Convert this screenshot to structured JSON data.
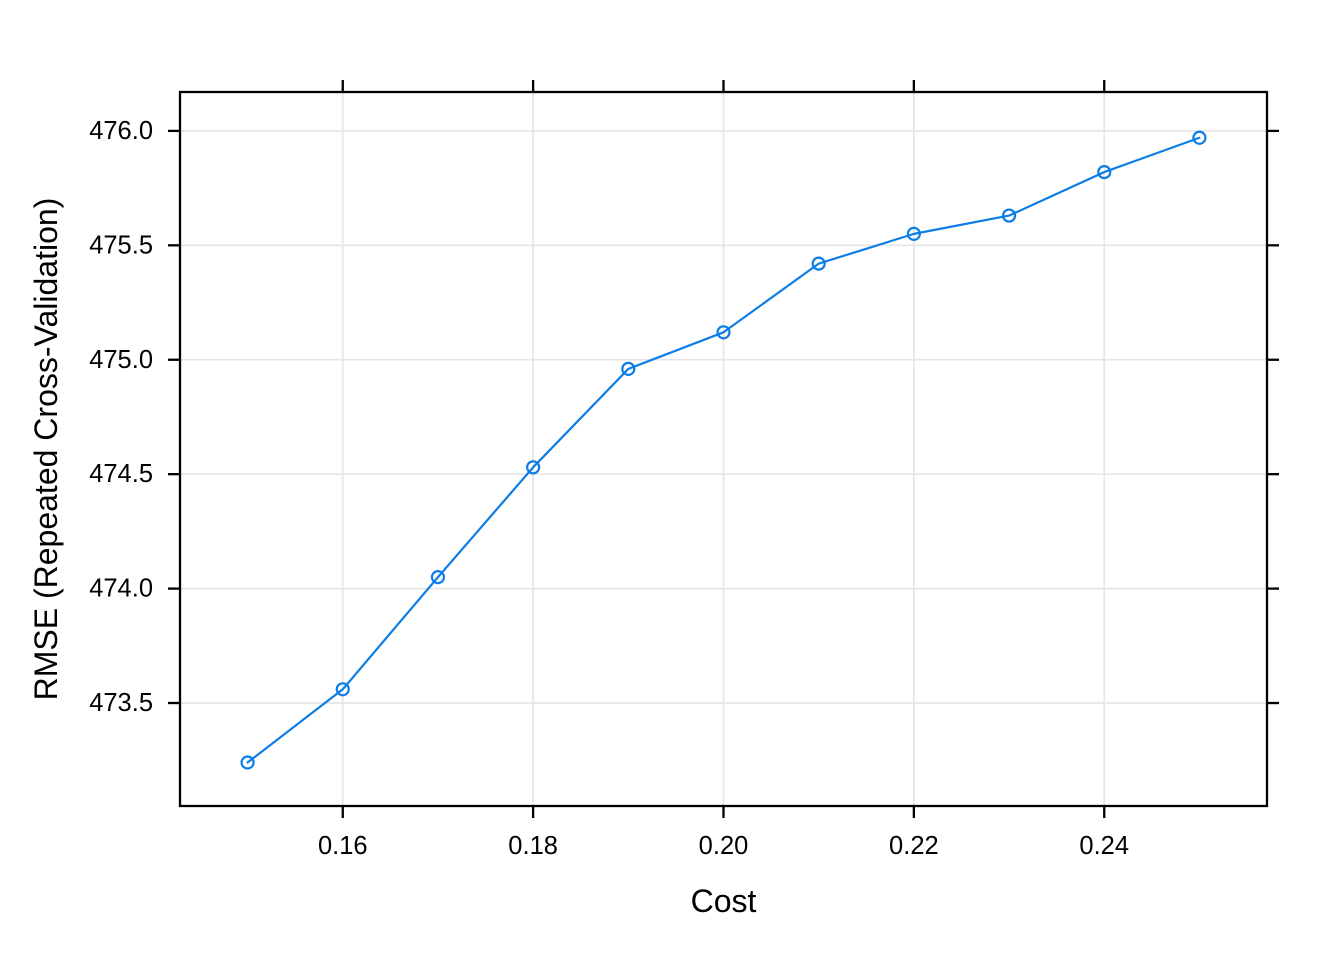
{
  "chart_data": {
    "type": "line",
    "title": "",
    "xlabel": "Cost",
    "ylabel": "RMSE (Repeated Cross-Validation)",
    "series": [
      {
        "name": "RMSE (Repeated Cross-Validation)",
        "x": [
          0.15,
          0.16,
          0.17,
          0.18,
          0.19,
          0.2,
          0.21,
          0.22,
          0.23,
          0.24,
          0.25
        ],
        "y": [
          473.24,
          473.56,
          474.05,
          474.53,
          474.96,
          475.12,
          475.42,
          475.55,
          475.63,
          475.82,
          475.97
        ]
      }
    ],
    "x_ticks": {
      "values": [
        0.16,
        0.18,
        0.2,
        0.22,
        0.24
      ],
      "labels": [
        "0.16",
        "0.18",
        "0.20",
        "0.22",
        "0.24"
      ]
    },
    "y_ticks": {
      "values": [
        473.5,
        474.0,
        474.5,
        475.0,
        475.5,
        476.0
      ],
      "labels": [
        "473.5",
        "474.0",
        "474.5",
        "475.0",
        "475.5",
        "476.0"
      ]
    },
    "xlim": [
      0.1429,
      0.2571
    ],
    "ylim": [
      473.05,
      476.17
    ],
    "grid": true,
    "legend": "none",
    "marker": "open-circle",
    "colors": {
      "line": "#0d7de6",
      "grid": "#e6e6e6",
      "axis": "#000000",
      "text": "#000000",
      "background": "#ffffff"
    }
  }
}
